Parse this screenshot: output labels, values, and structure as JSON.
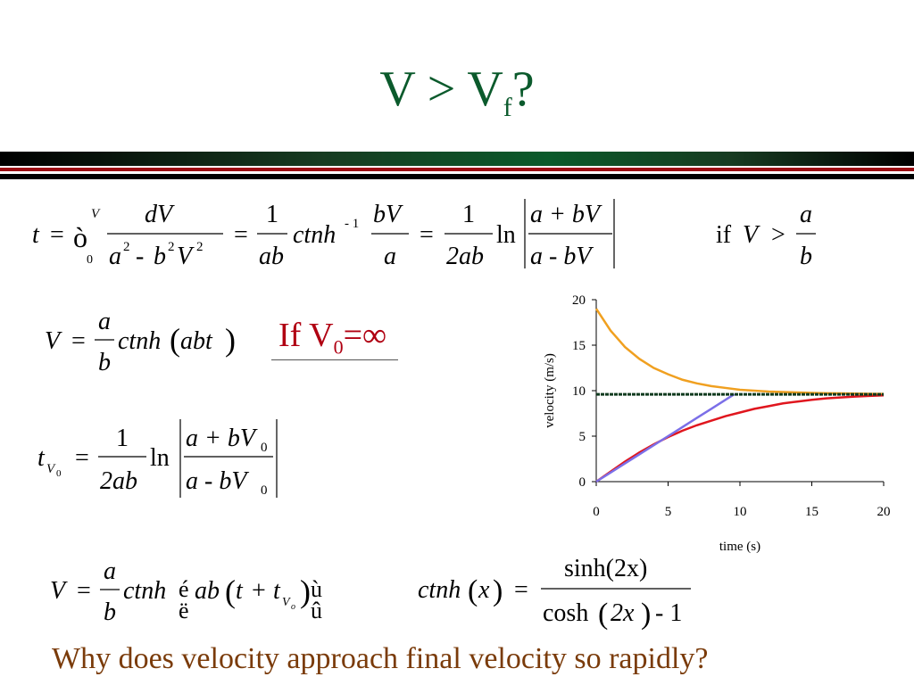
{
  "slide": {
    "title_main": "V > V",
    "title_sub": "f",
    "title_tail": "?",
    "if_v0_prefix": "If V",
    "if_v0_sub": "0",
    "if_v0_tail": "=∞",
    "question": "Why does velocity approach final velocity so rapidly?"
  },
  "equations": {
    "eq1": {
      "t": "t",
      "eq": "=",
      "integral": "ò",
      "upper": "V",
      "lower": "0",
      "num": "dV",
      "one": "1",
      "ctnh": "ctnh",
      "inv": "- 1",
      "ln": "ln",
      "cond_if": "if",
      "cond_V": "V",
      "gt": ">",
      "a": "a",
      "b": "b",
      "two_ab": "2ab",
      "ab": "ab",
      "bV": "bV",
      "a_plus_bV": "a + bV",
      "a_minus_bV": "a - bV"
    },
    "eq2": {
      "V": "V",
      "eq": "=",
      "a": "a",
      "b": "b",
      "ctnh": "ctnh",
      "abt": "abt"
    },
    "eq3": {
      "t": "t",
      "sub": "V",
      "subsub": "0",
      "eq": "=",
      "one": "1",
      "two_ab": "2ab",
      "ln": "ln",
      "num": "a + bV",
      "den": "a - bV",
      "zero": "0"
    },
    "eq4": {
      "V": "V",
      "eq": "=",
      "a": "a",
      "b": "b",
      "ctnh": "ctnh",
      "lb": "é",
      "rb": "ù",
      "ab": "ab",
      "t": "t",
      "plus": "+",
      "tv": "t",
      "sub": "V",
      "subsub": "o",
      "lb2": "ë",
      "rb2": "û"
    },
    "eq5": {
      "ctnh": "ctnh",
      "x": "x",
      "eq": "=",
      "num": "sinh(2x)",
      "den_a": "cosh",
      "den_b": "2x",
      "den_c": "- 1"
    }
  },
  "colors": {
    "title": "#0b5a2c",
    "if_v0": "#b00012",
    "question": "#7a3b0a"
  },
  "chart_data": {
    "type": "line",
    "xlabel": "time (s)",
    "ylabel": "velocity (m/s)",
    "xlim": [
      0,
      20
    ],
    "ylim": [
      0,
      20
    ],
    "xticks": [
      0,
      5,
      10,
      15,
      20
    ],
    "yticks": [
      0,
      5,
      10,
      15,
      20
    ],
    "grid": false,
    "series": [
      {
        "color": "#f0a020",
        "x": [
          0,
          1,
          2,
          3,
          4,
          5,
          6,
          7,
          8,
          9,
          10,
          11,
          12,
          13,
          14,
          15,
          16,
          17,
          18,
          19,
          20
        ],
        "values": [
          19.0,
          16.6,
          14.8,
          13.5,
          12.5,
          11.8,
          11.2,
          10.8,
          10.5,
          10.3,
          10.1,
          10.0,
          9.9,
          9.85,
          9.8,
          9.75,
          9.72,
          9.7,
          9.68,
          9.66,
          9.65
        ]
      },
      {
        "color": "#e0161e",
        "x": [
          0,
          1,
          2,
          3,
          4,
          5,
          6,
          7,
          8,
          9,
          10,
          11,
          12,
          13,
          14,
          15,
          16,
          17,
          18,
          19,
          20
        ],
        "values": [
          0,
          1.1,
          2.2,
          3.2,
          4.1,
          4.9,
          5.6,
          6.2,
          6.7,
          7.2,
          7.6,
          8.0,
          8.3,
          8.6,
          8.8,
          9.0,
          9.15,
          9.25,
          9.35,
          9.42,
          9.48
        ]
      },
      {
        "color": "#7b6fe8",
        "x": [
          0,
          1,
          2,
          3,
          4,
          5,
          6,
          7,
          8,
          9,
          9.6
        ],
        "values": [
          0,
          1.0,
          2.0,
          3.0,
          4.0,
          5.0,
          6.0,
          7.0,
          8.0,
          9.0,
          9.6
        ]
      },
      {
        "color": "#0f3a1e",
        "dashed": true,
        "x": [
          0,
          20
        ],
        "values": [
          9.6,
          9.6
        ]
      }
    ]
  }
}
